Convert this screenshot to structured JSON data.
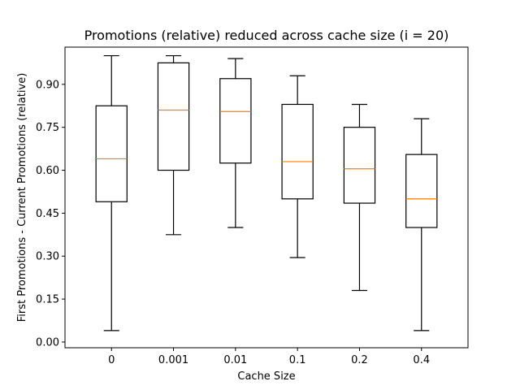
{
  "chart_data": {
    "type": "box",
    "title": "Promotions (relative) reduced across cache size (i = 20)",
    "xlabel": "Cache Size",
    "ylabel": "First Promotions - Current Promotions (relative)",
    "categories": [
      "0",
      "0.001",
      "0.01",
      "0.1",
      "0.2",
      "0.4"
    ],
    "yticks": [
      "0.00",
      "0.15",
      "0.30",
      "0.45",
      "0.60",
      "0.75",
      "0.90"
    ],
    "ylim": [
      -0.02,
      1.03
    ],
    "grid": false,
    "boxes": [
      {
        "whisker_low": 0.04,
        "q1": 0.49,
        "median": 0.64,
        "q3": 0.825,
        "whisker_high": 1.0
      },
      {
        "whisker_low": 0.375,
        "q1": 0.6,
        "median": 0.81,
        "q3": 0.975,
        "whisker_high": 1.0
      },
      {
        "whisker_low": 0.4,
        "q1": 0.625,
        "median": 0.805,
        "q3": 0.92,
        "whisker_high": 0.99
      },
      {
        "whisker_low": 0.295,
        "q1": 0.5,
        "median": 0.63,
        "q3": 0.83,
        "whisker_high": 0.93
      },
      {
        "whisker_low": 0.18,
        "q1": 0.485,
        "median": 0.605,
        "q3": 0.75,
        "whisker_high": 0.83
      },
      {
        "whisker_low": 0.04,
        "q1": 0.4,
        "median": 0.5,
        "q3": 0.655,
        "whisker_high": 0.78
      }
    ],
    "colors": {
      "box": "#000000",
      "median": "#ff7f0e"
    }
  }
}
